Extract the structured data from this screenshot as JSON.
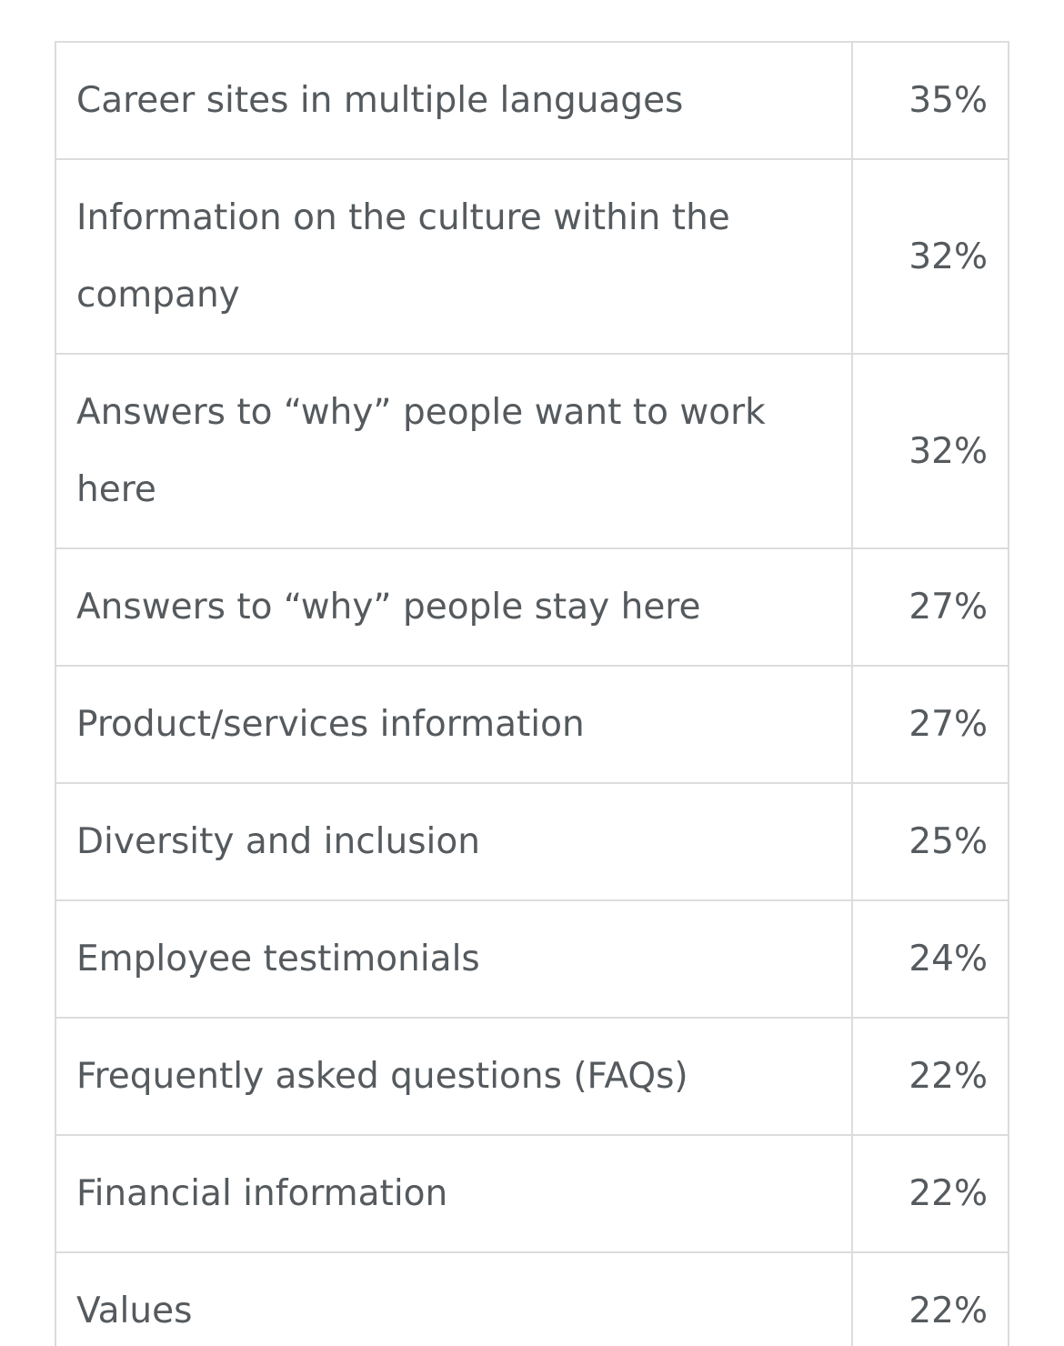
{
  "table": {
    "rows": [
      {
        "label": "Career sites in multiple languages",
        "value": "35%"
      },
      {
        "label": "Information on the culture within the company",
        "value": "32%"
      },
      {
        "label": "Answers to “why” people want to work here",
        "value": "32%"
      },
      {
        "label": "Answers to “why” people stay here",
        "value": "27%"
      },
      {
        "label": "Product/services information",
        "value": "27%"
      },
      {
        "label": "Diversity and inclusion",
        "value": "25%"
      },
      {
        "label": "Employee testimonials",
        "value": "24%"
      },
      {
        "label": "Frequently asked questions (FAQs)",
        "value": "22%"
      },
      {
        "label": "Financial information",
        "value": "22%"
      },
      {
        "label": "Values",
        "value": "22%"
      }
    ]
  }
}
